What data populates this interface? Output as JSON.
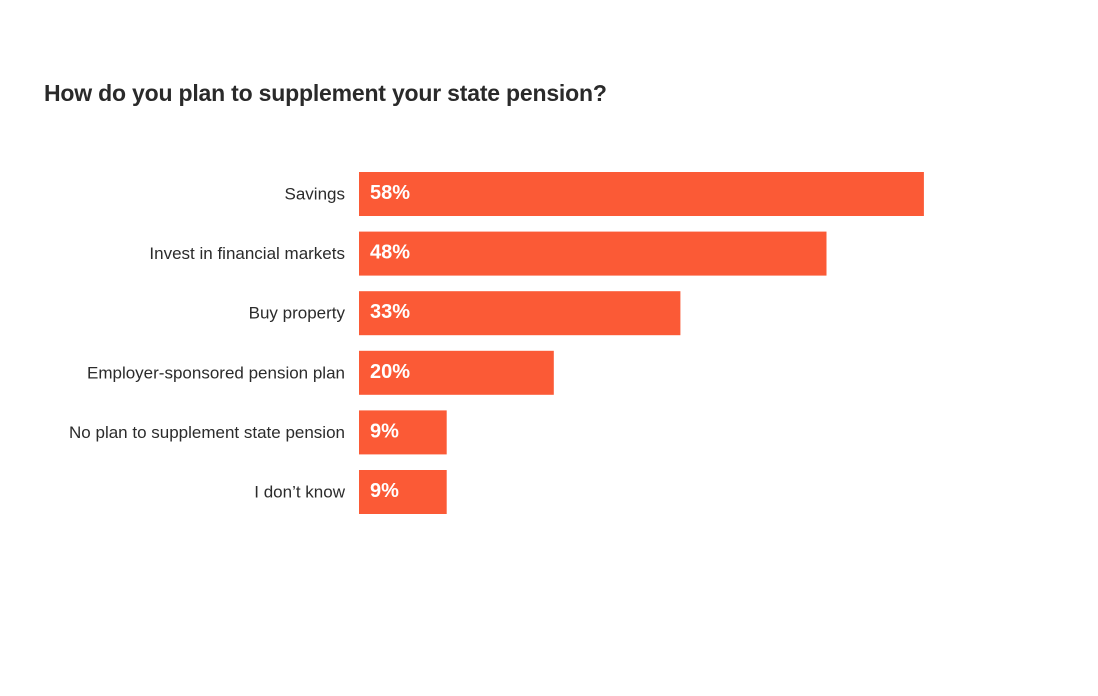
{
  "chart_data": {
    "type": "bar",
    "orientation": "horizontal",
    "title": "How do you plan to supplement your state pension?",
    "categories": [
      "Savings",
      "Invest in financial markets",
      "Buy property",
      "Employer-sponsored pension plan",
      "No plan to supplement state pension",
      "I don’t know"
    ],
    "values": [
      58,
      48,
      33,
      20,
      9,
      9
    ],
    "value_labels": [
      "58%",
      "48%",
      "33%",
      "20%",
      "9%",
      "9%"
    ],
    "unit": "%",
    "xlim": [
      0,
      100
    ],
    "grid": false,
    "legend": "none",
    "bar_color": "#fb5a36"
  }
}
